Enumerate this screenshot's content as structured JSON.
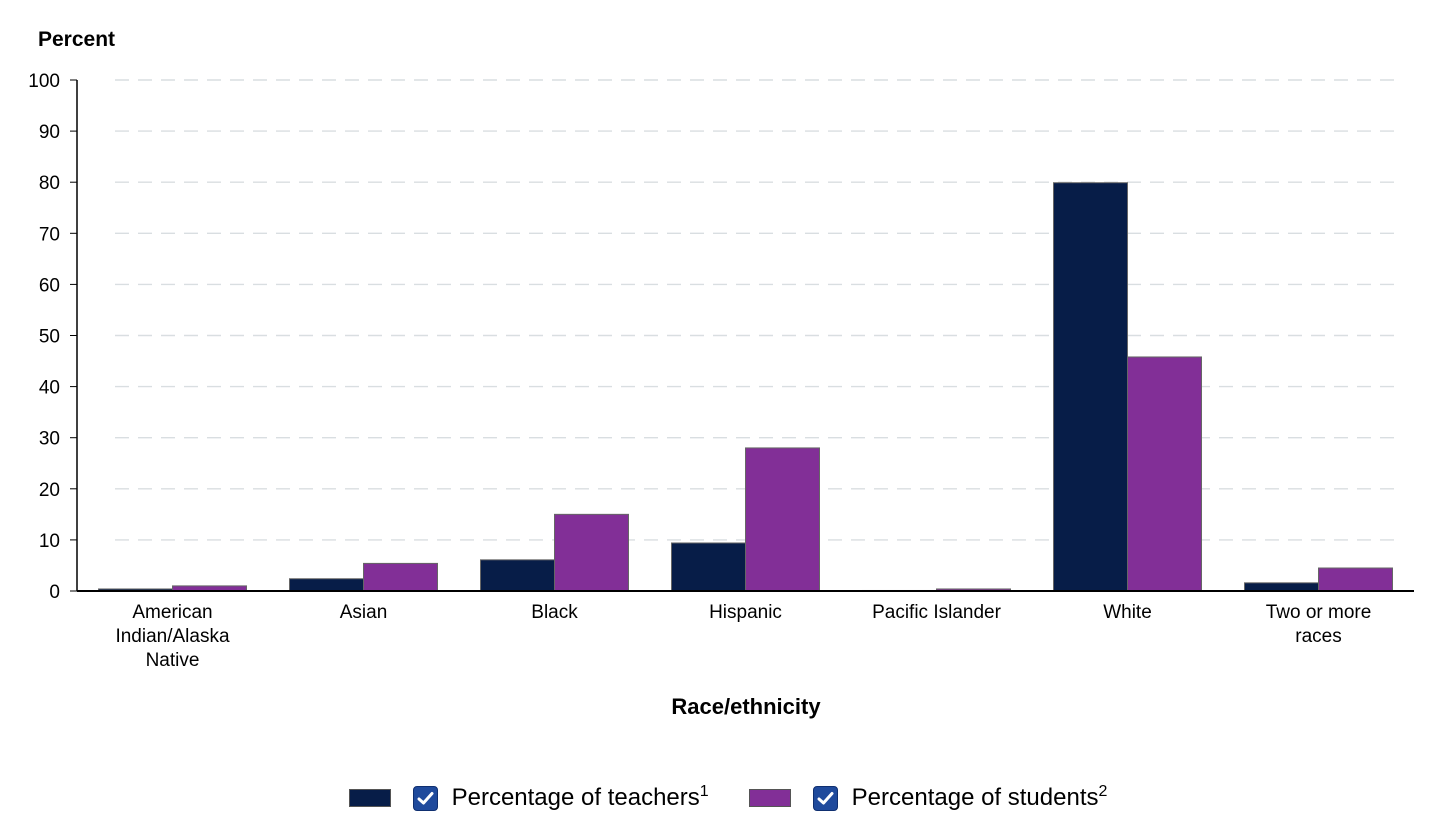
{
  "chart_data": {
    "type": "bar",
    "ylabel": "Percent",
    "xlabel": "Race/ethnicity",
    "ylim": [
      0,
      100
    ],
    "yticks": [
      0,
      10,
      20,
      30,
      40,
      50,
      60,
      70,
      80,
      90,
      100
    ],
    "grid": true,
    "legend_position": "bottom",
    "categories": [
      [
        "American",
        "Indian/Alaska",
        "Native"
      ],
      [
        "Asian"
      ],
      [
        "Black"
      ],
      [
        "Hispanic"
      ],
      [
        "Pacific Islander"
      ],
      [
        "White"
      ],
      [
        "Two or more",
        "races"
      ]
    ],
    "series": [
      {
        "name": "Percentage of teachers",
        "footnote": "1",
        "color": "#071d48",
        "values": [
          0.4,
          2.4,
          6.1,
          9.4,
          0.1,
          79.9,
          1.6
        ]
      },
      {
        "name": "Percentage of students",
        "footnote": "2",
        "color": "#822f97",
        "values": [
          1.0,
          5.4,
          15.0,
          28.0,
          0.4,
          45.8,
          4.5
        ]
      }
    ]
  },
  "colors": {
    "grid": "#d9dee1",
    "axis": "#000000",
    "checkbox": "#1f4a9c"
  }
}
